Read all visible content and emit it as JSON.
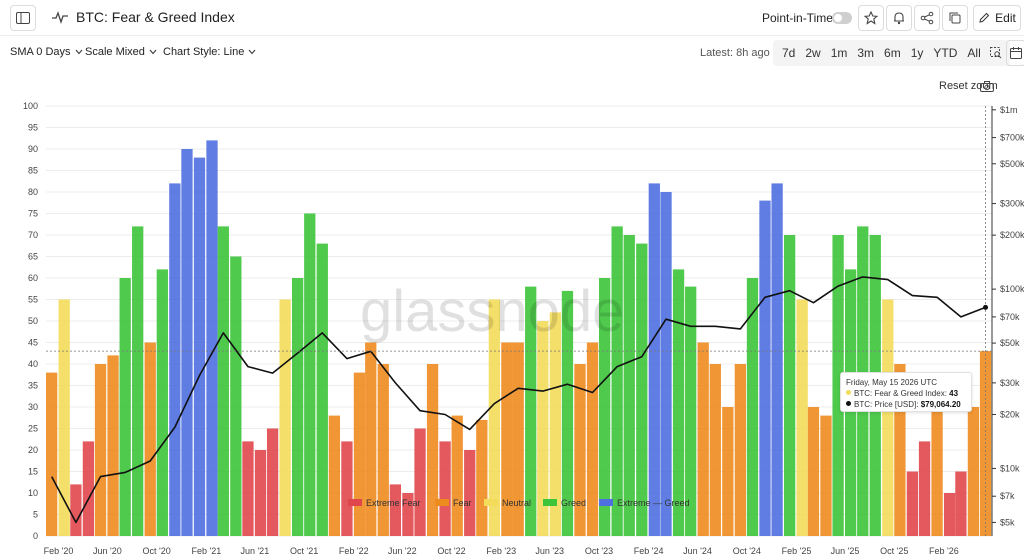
{
  "header": {
    "title": "BTC: Fear & Greed Index",
    "point_in_time_label": "Point-in-Time",
    "edit_label": "Edit"
  },
  "toolbar": {
    "sma": "SMA 0 Days",
    "scale": "Scale Mixed",
    "chart_style": "Chart Style: Line",
    "latest": "Latest: 8h ago",
    "ranges": [
      "7d",
      "2w",
      "1m",
      "3m",
      "6m",
      "1y",
      "YTD",
      "All"
    ],
    "reset_zoom": "Reset zoom"
  },
  "tooltip": {
    "date": "Friday, May 15 2026 UTC",
    "fg_label": "BTC: Fear & Greed Index:",
    "fg_value": "43",
    "price_label": "BTC: Price [USD]:",
    "price_value": "$79,064.20"
  },
  "watermark": "glassnode",
  "icons": [
    "sidebar-toggle-icon",
    "pulse-icon",
    "star-icon",
    "bell-icon",
    "share-icon",
    "copy-icon",
    "pencil-icon",
    "chevron-down-icon",
    "zoom-select-icon",
    "calendar-icon",
    "camera-icon"
  ],
  "colors": {
    "extreme_fear": "#e0474c",
    "fear": "#ee8b1e",
    "neutral": "#f3dc5a",
    "greed": "#3cc43a",
    "extreme_greed": "#4f6fe0",
    "price": "#111111"
  },
  "chart_data": {
    "type": "bar",
    "y_left": {
      "ticks": [
        0,
        5,
        10,
        15,
        20,
        25,
        30,
        35,
        40,
        45,
        50,
        55,
        60,
        65,
        70,
        75,
        80,
        85,
        90,
        95,
        100
      ],
      "range": [
        0,
        100
      ]
    },
    "y_right": {
      "scale": "log",
      "ticks": [
        "$1m",
        "$700k",
        "$500k",
        "$300k",
        "$200k",
        "$100k",
        "$70k",
        "$50k",
        "$30k",
        "$20k",
        "$10k",
        "$7k",
        "$5k"
      ],
      "values": [
        1000000,
        700000,
        500000,
        300000,
        200000,
        100000,
        70000,
        50000,
        30000,
        20000,
        10000,
        7000,
        5000
      ]
    },
    "x_ticks": [
      "Feb '20",
      "Jun '20",
      "Oct '20",
      "Feb '21",
      "Jun '21",
      "Oct '21",
      "Feb '22",
      "Jun '22",
      "Oct '22",
      "Feb '23",
      "Jun '23",
      "Oct '23",
      "Feb '24",
      "Jun '24",
      "Oct '24",
      "Feb '25",
      "Jun '25",
      "Oct '25",
      "Feb '26"
    ],
    "x_range": [
      "2020-01-01",
      "2026-05-31"
    ],
    "legend": [
      "Extreme Fear",
      "Fear",
      "Neutral",
      "Greed",
      "Extreme — Greed"
    ],
    "legend_position": "bottom-center",
    "grid": true,
    "series": [
      {
        "name": "BTC: Fear & Greed Index",
        "dates": [
          "2020-01",
          "2020-02",
          "2020-03",
          "2020-04",
          "2020-05",
          "2020-06",
          "2020-07",
          "2020-08",
          "2020-09",
          "2020-10",
          "2020-11",
          "2020-12",
          "2021-01",
          "2021-02",
          "2021-03",
          "2021-04",
          "2021-05",
          "2021-06",
          "2021-07",
          "2021-08",
          "2021-09",
          "2021-10",
          "2021-11",
          "2021-12",
          "2022-01",
          "2022-02",
          "2022-03",
          "2022-04",
          "2022-05",
          "2022-06",
          "2022-07",
          "2022-08",
          "2022-09",
          "2022-10",
          "2022-11",
          "2022-12",
          "2023-01",
          "2023-02",
          "2023-03",
          "2023-04",
          "2023-05",
          "2023-06",
          "2023-07",
          "2023-08",
          "2023-09",
          "2023-10",
          "2023-11",
          "2023-12",
          "2024-01",
          "2024-02",
          "2024-03",
          "2024-04",
          "2024-05",
          "2024-06",
          "2024-07",
          "2024-08",
          "2024-09",
          "2024-10",
          "2024-11",
          "2024-12",
          "2025-01",
          "2025-02",
          "2025-03",
          "2025-04",
          "2025-05",
          "2025-06",
          "2025-07",
          "2025-08",
          "2025-09",
          "2025-10",
          "2025-11",
          "2025-12",
          "2026-01",
          "2026-02",
          "2026-03",
          "2026-04",
          "2026-05"
        ],
        "values": [
          38,
          55,
          12,
          22,
          40,
          42,
          60,
          72,
          45,
          62,
          82,
          90,
          88,
          92,
          72,
          65,
          22,
          20,
          25,
          55,
          60,
          75,
          68,
          28,
          22,
          38,
          45,
          40,
          12,
          10,
          25,
          40,
          22,
          28,
          20,
          27,
          55,
          45,
          45,
          58,
          50,
          52,
          57,
          40,
          45,
          60,
          72,
          70,
          68,
          82,
          80,
          62,
          58,
          45,
          40,
          30,
          40,
          60,
          78,
          82,
          70,
          55,
          30,
          28,
          70,
          62,
          72,
          70,
          55,
          40,
          15,
          22,
          35,
          10,
          15,
          30,
          43
        ]
      },
      {
        "name": "BTC: Price [USD]",
        "dates": [
          "2020-01",
          "2020-03",
          "2020-05",
          "2020-07",
          "2020-09",
          "2020-11",
          "2021-01",
          "2021-03",
          "2021-05",
          "2021-07",
          "2021-09",
          "2021-11",
          "2022-01",
          "2022-03",
          "2022-05",
          "2022-07",
          "2022-09",
          "2022-11",
          "2023-01",
          "2023-03",
          "2023-05",
          "2023-07",
          "2023-09",
          "2023-11",
          "2024-01",
          "2024-03",
          "2024-05",
          "2024-07",
          "2024-09",
          "2024-11",
          "2025-01",
          "2025-03",
          "2025-05",
          "2025-07",
          "2025-09",
          "2025-11",
          "2026-01",
          "2026-03",
          "2026-05"
        ],
        "values": [
          9000,
          5000,
          9000,
          9500,
          11000,
          17000,
          33000,
          57000,
          37000,
          34000,
          44000,
          57000,
          41000,
          45000,
          30000,
          21000,
          20000,
          16500,
          23000,
          28000,
          27000,
          29500,
          26500,
          37000,
          42000,
          68000,
          62000,
          62000,
          60000,
          90000,
          98000,
          84000,
          104000,
          117000,
          113000,
          92000,
          90000,
          70000,
          79064.2
        ]
      }
    ]
  }
}
